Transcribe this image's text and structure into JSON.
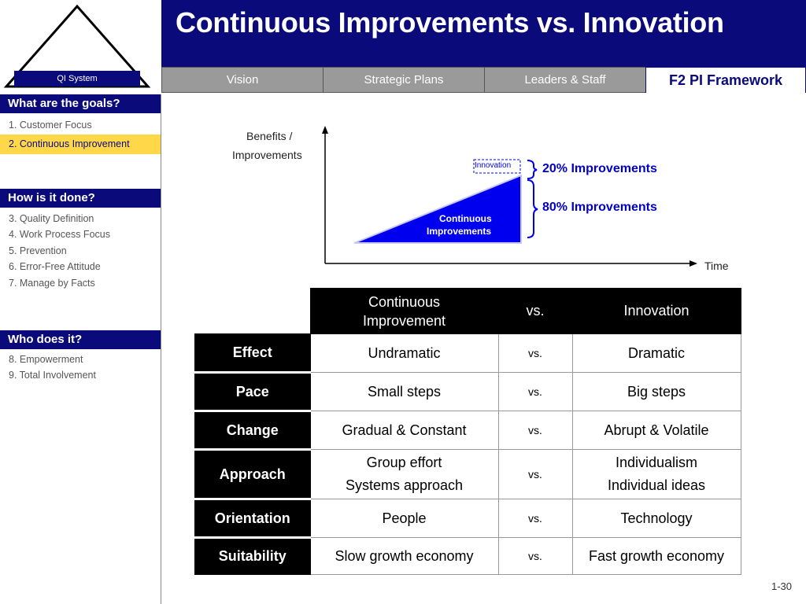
{
  "logo": {
    "label": "QI System"
  },
  "header": {
    "title": "Continuous Improvements vs. Innovation"
  },
  "tabs": [
    {
      "label": "Vision"
    },
    {
      "label": "Strategic Plans"
    },
    {
      "label": "Leaders & Staff"
    },
    {
      "label": "F2 PI Framework"
    }
  ],
  "sidebar": {
    "goals_heading": "What are the goals?",
    "goals": [
      "1. Customer Focus",
      "2. Continuous Improvement"
    ],
    "how_heading": "How is it done?",
    "how": [
      "3. Quality Definition",
      "4. Work Process Focus",
      "5. Prevention",
      "6. Error-Free Attitude",
      "7. Manage by Facts"
    ],
    "who_heading": "Who does it?",
    "who": [
      "8. Empowerment",
      "9. Total Involvement"
    ]
  },
  "diagram": {
    "y_label_line1": "Benefits /",
    "y_label_line2": "Improvements",
    "x_label": "Time",
    "innovation_label": "Innovation",
    "continuous_label_line1": "Continuous",
    "continuous_label_line2": "Improvements",
    "improve20": "20% Improvements",
    "improve80": "80% Improvements"
  },
  "table": {
    "col_continuous_line1": "Continuous",
    "col_continuous_line2": "Improvement",
    "col_vs": "vs.",
    "col_innovation": "Innovation",
    "rows": [
      {
        "label": "Effect",
        "left": [
          "Undramatic"
        ],
        "vs": "vs.",
        "right": [
          "Dramatic"
        ]
      },
      {
        "label": "Pace",
        "left": [
          "Small steps"
        ],
        "vs": "vs.",
        "right": [
          "Big steps"
        ]
      },
      {
        "label": "Change",
        "left": [
          "Gradual & Constant"
        ],
        "vs": "vs.",
        "right": [
          "Abrupt & Volatile"
        ]
      },
      {
        "label": "Approach",
        "left": [
          "Group effort",
          "Systems approach"
        ],
        "vs": "vs.",
        "right": [
          "Individualism",
          "Individual ideas"
        ]
      },
      {
        "label": "Orientation",
        "left": [
          "People"
        ],
        "vs": "vs.",
        "right": [
          "Technology"
        ]
      },
      {
        "label": "Suitability",
        "left": [
          "Slow growth economy"
        ],
        "vs": "vs.",
        "right": [
          "Fast growth economy"
        ]
      }
    ]
  },
  "page_number": "1-30",
  "colors": {
    "navy": "#0a0a7a",
    "highlight": "#ffd84a",
    "tab_gray": "#9a9a9a",
    "triangle_blue": "#0000ee"
  }
}
